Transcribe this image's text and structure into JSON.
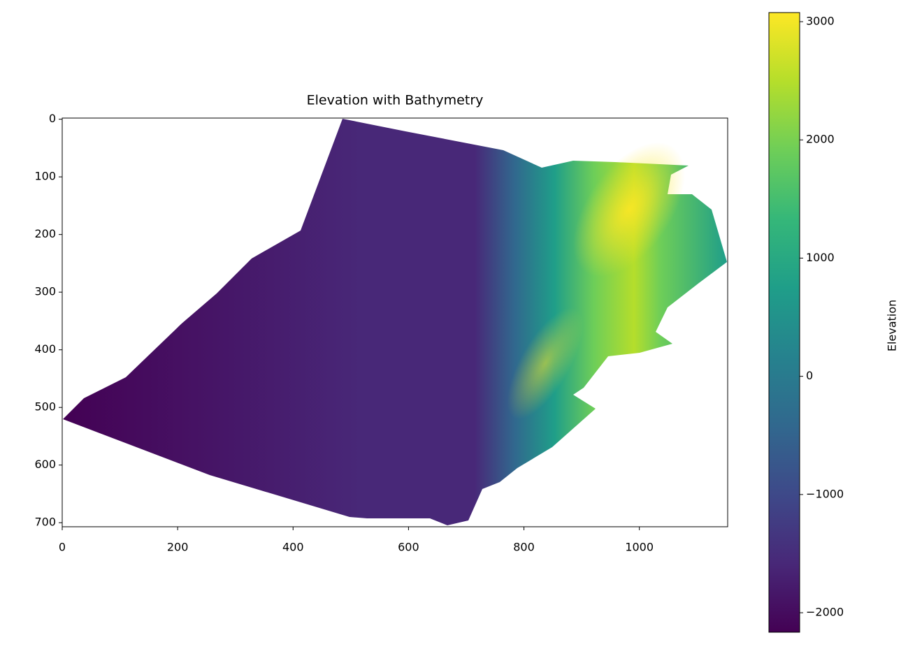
{
  "chart_data": {
    "type": "image",
    "title": "Elevation with Bathymetry",
    "colorbar_label": "Elevation",
    "colormap": "viridis",
    "xlim": [
      0,
      1153
    ],
    "ylim": [
      707,
      -2
    ],
    "xticks": [
      0,
      200,
      400,
      600,
      800,
      1000
    ],
    "yticks": [
      0,
      100,
      200,
      300,
      400,
      500,
      600,
      700
    ],
    "clim": [
      -2165,
      3077
    ],
    "cticks": [
      {
        "value": -2000,
        "label": "−2000"
      },
      {
        "value": -1000,
        "label": "−1000"
      },
      0,
      1000,
      2000,
      3000
    ]
  }
}
